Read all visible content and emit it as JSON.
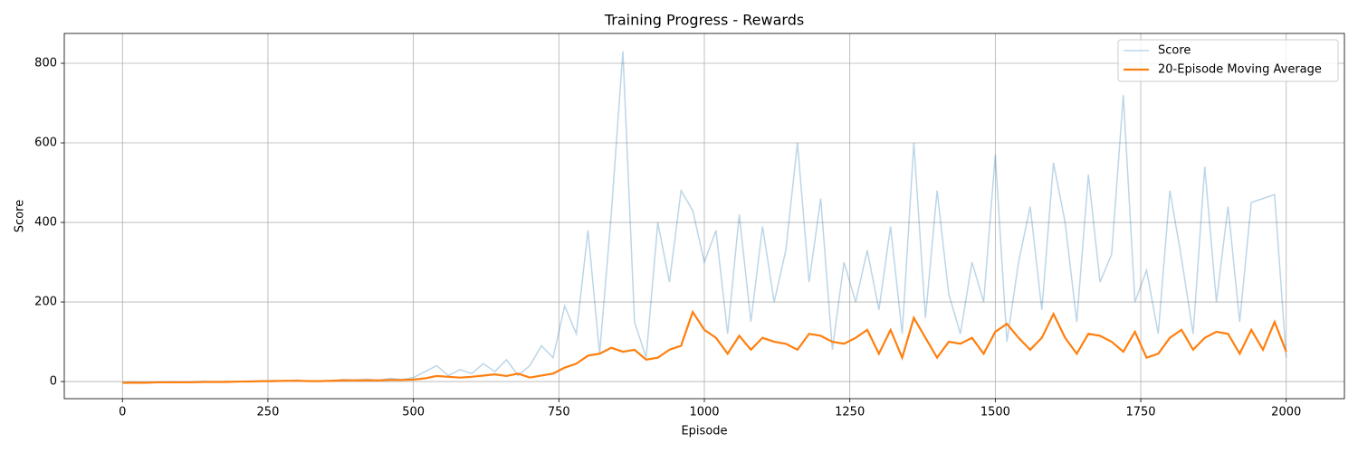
{
  "chart_data": {
    "type": "line",
    "title": "Training Progress - Rewards",
    "xlabel": "Episode",
    "ylabel": "Score",
    "x": [
      0,
      20,
      40,
      60,
      80,
      100,
      120,
      140,
      160,
      180,
      200,
      220,
      240,
      260,
      280,
      300,
      320,
      340,
      360,
      380,
      400,
      420,
      440,
      460,
      480,
      500,
      520,
      540,
      560,
      580,
      600,
      620,
      640,
      660,
      680,
      700,
      720,
      740,
      760,
      780,
      800,
      820,
      840,
      860,
      880,
      900,
      920,
      940,
      960,
      980,
      1000,
      1020,
      1040,
      1060,
      1080,
      1100,
      1120,
      1140,
      1160,
      1180,
      1200,
      1220,
      1240,
      1260,
      1280,
      1300,
      1320,
      1340,
      1360,
      1380,
      1400,
      1420,
      1440,
      1460,
      1480,
      1500,
      1520,
      1540,
      1560,
      1580,
      1600,
      1620,
      1640,
      1660,
      1680,
      1700,
      1720,
      1740,
      1760,
      1780,
      1800,
      1820,
      1840,
      1860,
      1880,
      1900,
      1920,
      1940,
      1960,
      1980,
      2000
    ],
    "series": [
      {
        "name": "Score",
        "color": "#1f77b4",
        "alpha": 0.3,
        "values": [
          -2,
          -1,
          -2,
          -1,
          0,
          -1,
          0,
          1,
          0,
          1,
          0,
          2,
          1,
          3,
          2,
          4,
          1,
          2,
          3,
          5,
          4,
          6,
          3,
          8,
          5,
          10,
          25,
          40,
          15,
          30,
          20,
          45,
          25,
          55,
          15,
          40,
          90,
          60,
          190,
          120,
          380,
          70,
          420,
          830,
          150,
          60,
          400,
          250,
          480,
          430,
          300,
          380,
          120,
          420,
          150,
          390,
          200,
          330,
          600,
          250,
          460,
          80,
          300,
          200,
          330,
          180,
          390,
          120,
          600,
          160,
          480,
          220,
          120,
          300,
          200,
          570,
          100,
          300,
          440,
          180,
          550,
          400,
          150,
          520,
          250,
          320,
          720,
          200,
          280,
          120,
          480,
          310,
          120,
          540,
          200,
          440,
          150,
          450,
          460,
          470,
          60
        ]
      },
      {
        "name": "20-Episode Moving Average",
        "color": "#ff7f0e",
        "alpha": 1,
        "values": [
          -3,
          -3,
          -3,
          -2,
          -2,
          -2,
          -2,
          -1,
          -1,
          -1,
          0,
          0,
          1,
          1,
          2,
          2,
          1,
          1,
          2,
          3,
          3,
          3,
          3,
          4,
          4,
          5,
          8,
          14,
          12,
          10,
          12,
          15,
          18,
          14,
          20,
          10,
          15,
          20,
          35,
          45,
          65,
          70,
          85,
          75,
          80,
          55,
          60,
          80,
          90,
          175,
          130,
          110,
          70,
          115,
          80,
          110,
          100,
          95,
          80,
          120,
          115,
          100,
          95,
          110,
          130,
          70,
          130,
          60,
          160,
          110,
          60,
          100,
          95,
          110,
          70,
          125,
          145,
          110,
          80,
          110,
          170,
          110,
          70,
          120,
          115,
          100,
          75,
          125,
          60,
          70,
          110,
          130,
          80,
          110,
          125,
          120,
          70,
          130,
          80,
          150,
          75
        ]
      }
    ],
    "xlim": [
      -100,
      2100
    ],
    "ylim": [
      -43,
      875
    ],
    "xticks": [
      0,
      250,
      500,
      750,
      1000,
      1250,
      1500,
      1750,
      2000
    ],
    "yticks": [
      0,
      200,
      400,
      600,
      800
    ],
    "grid": true,
    "legend": "upper right"
  }
}
